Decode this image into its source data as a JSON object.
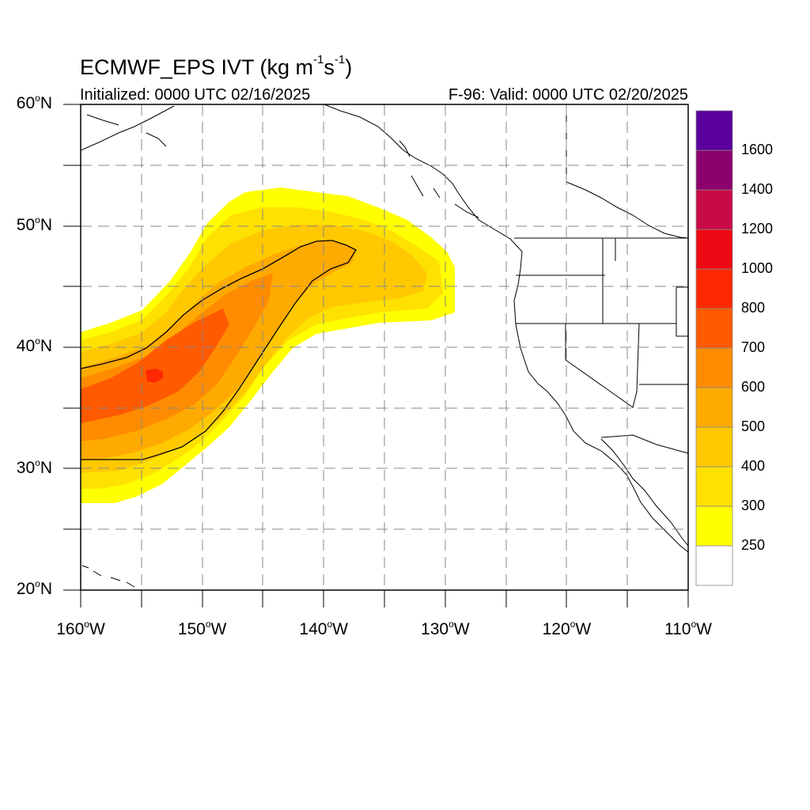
{
  "title": {
    "main": "ECMWF_EPS IVT (kg m",
    "exp1": "-1",
    "mid": "s",
    "exp2": "-1",
    "end": ")"
  },
  "subtitle_left": "Initialized: 0000 UTC 02/16/2025",
  "subtitle_right": "F-96: Valid: 0000 UTC 02/20/2025",
  "lat_labels": [
    {
      "value": 60,
      "text": "60",
      "suffix": "N"
    },
    {
      "value": 50,
      "text": "50",
      "suffix": "N"
    },
    {
      "value": 40,
      "text": "40",
      "suffix": "N"
    },
    {
      "value": 30,
      "text": "30",
      "suffix": "N"
    },
    {
      "value": 20,
      "text": "20",
      "suffix": "N"
    }
  ],
  "lon_labels": [
    {
      "value": -160,
      "text": "160",
      "suffix": "W"
    },
    {
      "value": -150,
      "text": "150",
      "suffix": "W"
    },
    {
      "value": -140,
      "text": "140",
      "suffix": "W"
    },
    {
      "value": -130,
      "text": "130",
      "suffix": "W"
    },
    {
      "value": -120,
      "text": "120",
      "suffix": "W"
    },
    {
      "value": -110,
      "text": "110",
      "suffix": "W"
    }
  ],
  "colorbar": {
    "colors": [
      "#ffffff",
      "#ffff00",
      "#ffe100",
      "#ffc800",
      "#ffaa00",
      "#ff8c00",
      "#ff5a00",
      "#ff2800",
      "#ee0a14",
      "#c80a46",
      "#8c006e",
      "#5a009b"
    ],
    "labels": [
      "250",
      "300",
      "400",
      "500",
      "600",
      "700",
      "800",
      "1000",
      "1200",
      "1400",
      "1600"
    ]
  },
  "chart_data": {
    "type": "heatmap",
    "variable": "IVT (kg m-1 s-1)",
    "lon_range": [
      -160,
      -110
    ],
    "lat_range": [
      20,
      60
    ],
    "gridlines": "dashed every 5 degrees",
    "contour_levels": [
      250,
      300,
      400,
      500,
      600,
      700,
      800,
      1000,
      1200,
      1400,
      1600
    ],
    "feature": "atmospheric river from about 160W 35N northeast to about 130W 45N, max IVT 700-800 near 154W 38N"
  }
}
